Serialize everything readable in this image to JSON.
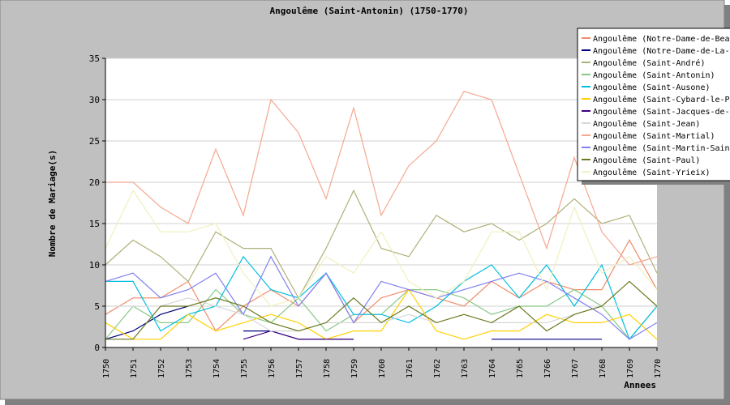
{
  "chart_data": {
    "type": "line",
    "title": "Angoulême (Saint-Antonin) (1750-1770)",
    "xlabel": "Annees",
    "ylabel": "Nombre de Mariage(s)",
    "ylim": [
      0,
      35
    ],
    "yticks": [
      0,
      5,
      10,
      15,
      20,
      25,
      30,
      35
    ],
    "grid": true,
    "legend_position": "top-right",
    "x": [
      "1750",
      "1751",
      "1752",
      "1753",
      "1754",
      "1755",
      "1756",
      "1757",
      "1758",
      "1759",
      "1760",
      "1761",
      "1762",
      "1763",
      "1764",
      "1765",
      "1766",
      "1767",
      "1768",
      "1769",
      "1770"
    ],
    "series": [
      {
        "name": "Angoulême (Notre-Dame-de-Beaulieu)",
        "color": "#f08c6c",
        "values": [
          4,
          6,
          6,
          8,
          2,
          5,
          7,
          5,
          9,
          3,
          6,
          7,
          6,
          5,
          8,
          6,
          8,
          7,
          7,
          13,
          7
        ]
      },
      {
        "name": "Angoulême (Notre-Dame-de-La-Peine)",
        "color": "#000080",
        "values": [
          1,
          2,
          4,
          5,
          null,
          2,
          2,
          1,
          1,
          1,
          null,
          null,
          null,
          null,
          1,
          1,
          1,
          1,
          1,
          null,
          null
        ]
      },
      {
        "name": "Angoulême (Saint-André)",
        "color": "#b0b07a",
        "values": [
          10,
          13,
          11,
          8,
          14,
          12,
          12,
          6,
          12,
          19,
          12,
          11,
          16,
          14,
          15,
          13,
          15,
          18,
          15,
          16,
          9
        ]
      },
      {
        "name": "Angoulême (Saint-Antonin)",
        "color": "#88c888",
        "values": [
          1,
          5,
          3,
          3,
          7,
          4,
          3,
          6,
          2,
          4,
          4,
          7,
          7,
          6,
          4,
          5,
          5,
          7,
          5,
          1,
          5
        ]
      },
      {
        "name": "Angoulême (Saint-Ausone)",
        "color": "#00bfe0",
        "values": [
          8,
          8,
          2,
          4,
          5,
          11,
          7,
          6,
          9,
          4,
          4,
          3,
          5,
          8,
          10,
          6,
          10,
          5,
          10,
          1,
          5
        ]
      },
      {
        "name": "Angoulême (Saint-Cybard-le-Peyrat)",
        "color": "#ffd000",
        "values": [
          3,
          1,
          1,
          4,
          2,
          3,
          4,
          3,
          1,
          2,
          2,
          7,
          2,
          1,
          2,
          2,
          4,
          3,
          3,
          4,
          1
        ]
      },
      {
        "name": "Angoulême (Saint-Jacques-de-Lhoumeau)",
        "color": "#400080",
        "values": [
          null,
          null,
          null,
          null,
          null,
          1,
          2,
          1,
          1,
          1,
          null,
          null,
          null,
          null,
          null,
          null,
          null,
          null,
          null,
          null,
          null
        ]
      },
      {
        "name": "Angoulême (Saint-Jean)",
        "color": "#d8d8d8",
        "values": [
          5,
          5,
          5,
          6,
          5,
          4,
          2,
          2,
          3,
          3,
          3,
          4,
          3,
          4,
          3,
          3,
          3,
          4,
          5,
          5,
          5
        ]
      },
      {
        "name": "Angoulême (Saint-Martial)",
        "color": "#f4a890",
        "values": [
          20,
          20,
          17,
          15,
          24,
          16,
          30,
          26,
          18,
          29,
          16,
          22,
          25,
          31,
          30,
          21,
          12,
          23,
          14,
          10,
          11
        ]
      },
      {
        "name": "Angoulême (Saint-Martin-Saint-Éloi)",
        "color": "#8080f0",
        "values": [
          8,
          9,
          6,
          7,
          9,
          4,
          11,
          5,
          9,
          3,
          8,
          7,
          6,
          7,
          8,
          9,
          8,
          6,
          4,
          1,
          3
        ]
      },
      {
        "name": "Angoulême (Saint-Paul)",
        "color": "#6a7a20",
        "values": [
          1,
          1,
          5,
          5,
          6,
          5,
          3,
          2,
          3,
          6,
          3,
          5,
          3,
          4,
          3,
          5,
          2,
          4,
          5,
          8,
          5
        ]
      },
      {
        "name": "Angoulême (Saint-Yrieix)",
        "color": "#f0f0c0",
        "values": [
          12,
          19,
          14,
          14,
          15,
          9,
          5,
          6,
          11,
          9,
          14,
          8,
          6,
          8,
          14,
          14,
          7,
          17,
          9,
          11,
          7
        ]
      }
    ]
  }
}
